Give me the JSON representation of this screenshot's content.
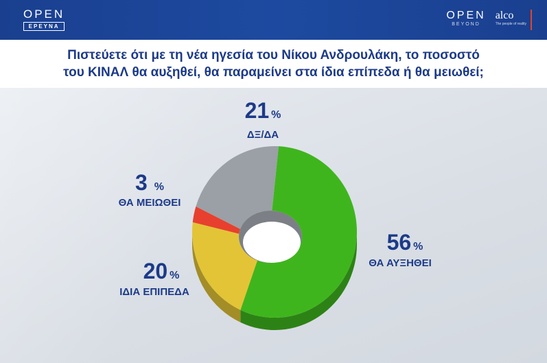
{
  "header": {
    "left_logo_main": "OPEN",
    "left_logo_sub": "ΕΡΕΥΝΑ",
    "right_logo_main": "OPEN",
    "right_logo_sub": "BEYOND",
    "partner_logo": "alco",
    "partner_tagline": "The people of reality"
  },
  "question": {
    "line1": "Πιστεύετε ότι  με τη νέα ηγεσία του Νίκου Ανδρουλάκη, το ποσοστό",
    "line2": "του ΚΙΝΑΛ θα αυξηθεί, θα παραμείνει στα ίδια επίπεδα ή θα μειωθεί;"
  },
  "chart_data": {
    "type": "pie",
    "title": "",
    "unit": "%",
    "slices": [
      {
        "label": "ΘΑ ΑΥΞΗΘΕΙ",
        "value": 56,
        "color": "#3fb51d"
      },
      {
        "label": "ΙΔΙΑ ΕΠΙΠΕΔΑ",
        "value": 20,
        "color": "#e3c436"
      },
      {
        "label": "ΘΑ ΜΕΙΩΘΕΙ",
        "value": 3,
        "color": "#e8402e"
      },
      {
        "label": "ΔΞ/ΔΑ",
        "value": 21,
        "color": "#9aa0a5"
      }
    ]
  }
}
